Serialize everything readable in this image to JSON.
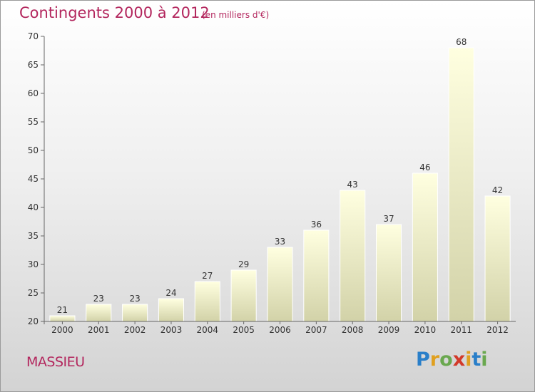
{
  "header": {
    "title": "Contingents 2000 à 2012",
    "subtitle": "(en milliers d'€)"
  },
  "footer": {
    "place": "MASSIEU",
    "logo_letters": [
      "P",
      "r",
      "o",
      "x",
      "i",
      "t",
      "i"
    ],
    "logo_colors": [
      "#2a7fc9",
      "#e0a020",
      "#6aa84f",
      "#d23a2a",
      "#e0a020",
      "#2a7fc9",
      "#6aa84f"
    ]
  },
  "chart_data": {
    "type": "bar",
    "title": "Contingents 2000 à 2012",
    "subtitle": "(en milliers d'€)",
    "categories": [
      "2000",
      "2001",
      "2002",
      "2003",
      "2004",
      "2005",
      "2006",
      "2007",
      "2008",
      "2009",
      "2010",
      "2011",
      "2012"
    ],
    "values": [
      21,
      23,
      23,
      24,
      27,
      29,
      33,
      36,
      43,
      37,
      46,
      68,
      42
    ],
    "ylim": [
      20,
      70
    ],
    "yticks": [
      20,
      25,
      30,
      35,
      40,
      45,
      50,
      55,
      60,
      65,
      70
    ],
    "grid": false,
    "bar_color_top": "#ffffe0",
    "bar_color_bottom": "#d2d2a8"
  }
}
